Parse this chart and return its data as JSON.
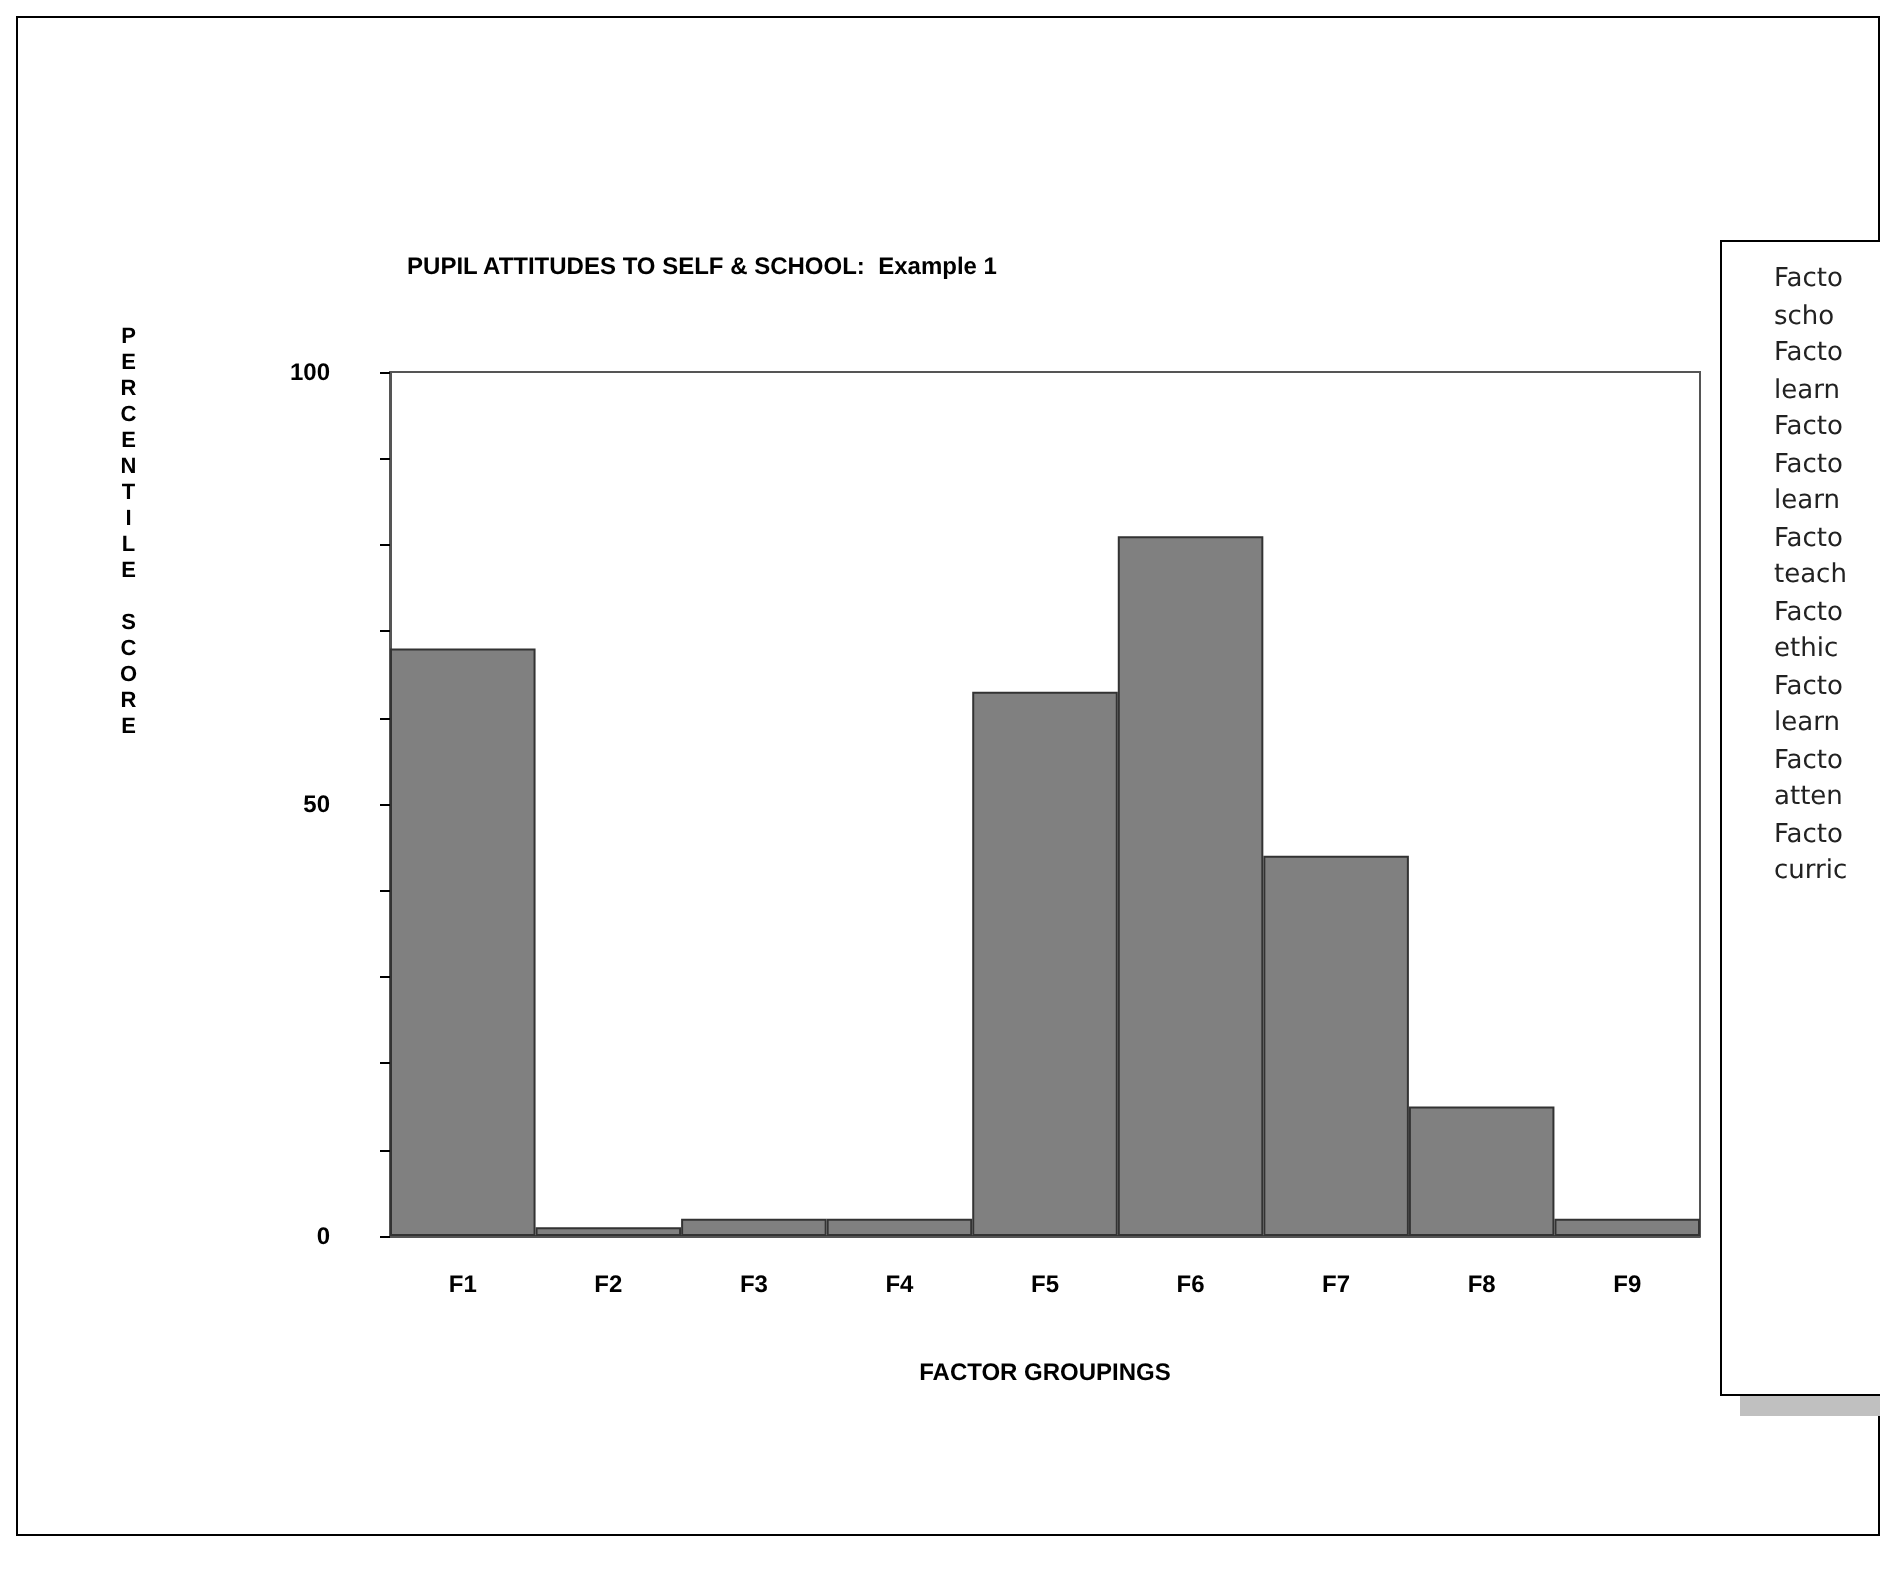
{
  "chart_data": {
    "type": "bar",
    "title": "PUPIL ATTITUDES TO SELF & SCHOOL:  Example 1",
    "xlabel": "FACTOR GROUPINGS",
    "ylabel": "PERCENTILE SCORE",
    "categories": [
      "F1",
      "F2",
      "F3",
      "F4",
      "F5",
      "F6",
      "F7",
      "F8",
      "F9"
    ],
    "values": [
      68,
      1,
      2,
      2,
      63,
      81,
      44,
      15,
      2
    ],
    "color": "#808080",
    "ylim": [
      0,
      100
    ],
    "yticks": [
      0,
      {
        "value": 10,
        "label": null
      },
      {
        "value": 20,
        "label": null
      },
      {
        "value": 30,
        "label": null
      },
      {
        "value": 40,
        "label": null
      },
      50,
      {
        "value": 60,
        "label": null
      },
      {
        "value": 70,
        "label": null
      },
      {
        "value": 80,
        "label": null
      },
      {
        "value": 90,
        "label": null
      },
      100
    ],
    "grid": false,
    "annotations": [
      "Facto",
      "scho",
      "Facto",
      "learn",
      "Facto",
      "Facto",
      "learn",
      "Facto",
      "teach",
      "Facto",
      "ethic",
      "Facto",
      "learn",
      "Facto",
      "atten",
      "Facto",
      "curric"
    ]
  }
}
